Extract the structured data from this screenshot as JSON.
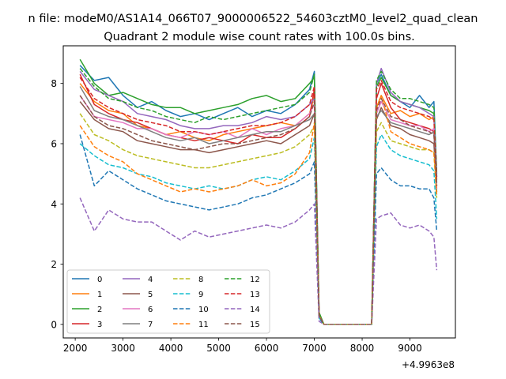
{
  "chart_data": {
    "type": "line",
    "suptitle": "n file: modeM0/AS1A14_066T07_9000006522_54603cztM0_level2_quad_clean",
    "title": "Quadrant 2 module wise count rates with 100.0s bins.",
    "xlabel": "",
    "ylabel": "",
    "x_offset_label": "+4.9963e8",
    "xlim": [
      1750,
      9950
    ],
    "ylim": [
      -0.45,
      9.25
    ],
    "xticks": [
      2000,
      3000,
      4000,
      5000,
      6000,
      7000,
      8000,
      9000
    ],
    "yticks": [
      0,
      2,
      4,
      6,
      8
    ],
    "grid": false,
    "legend_position": "lower-left",
    "legend_columns": 4,
    "x": [
      2100,
      2400,
      2700,
      3000,
      3300,
      3600,
      3900,
      4200,
      4500,
      4800,
      5100,
      5400,
      5700,
      6000,
      6300,
      6600,
      6900,
      7000,
      7100,
      7200,
      7400,
      7600,
      7800,
      8000,
      8200,
      8300,
      8400,
      8600,
      8800,
      9000,
      9200,
      9400,
      9500,
      9560
    ],
    "series": [
      {
        "name": "0",
        "color": "#1f77b4",
        "dash": "solid",
        "values": [
          8.6,
          8.1,
          8.2,
          7.6,
          7.2,
          7.4,
          7.1,
          6.9,
          7.0,
          6.8,
          7.0,
          7.2,
          6.9,
          7.1,
          7.0,
          7.3,
          7.8,
          8.4,
          0.3,
          0,
          0,
          0,
          0,
          0,
          0,
          8.0,
          8.3,
          7.6,
          7.4,
          7.2,
          7.6,
          7.2,
          7.4,
          5.0
        ]
      },
      {
        "name": "1",
        "color": "#ff7f0e",
        "dash": "solid",
        "values": [
          8.0,
          7.4,
          7.1,
          7.0,
          6.6,
          6.5,
          6.3,
          6.4,
          6.2,
          6.1,
          6.3,
          6.4,
          6.5,
          6.6,
          6.7,
          6.6,
          7.0,
          7.6,
          0.3,
          0,
          0,
          0,
          0,
          0,
          0,
          7.2,
          7.6,
          7.0,
          7.1,
          6.9,
          7.0,
          6.8,
          6.9,
          4.8
        ]
      },
      {
        "name": "2",
        "color": "#2ca02c",
        "dash": "solid",
        "values": [
          8.8,
          8.0,
          7.6,
          7.7,
          7.5,
          7.3,
          7.2,
          7.2,
          7.0,
          7.1,
          7.2,
          7.3,
          7.5,
          7.6,
          7.4,
          7.5,
          8.0,
          8.2,
          0.4,
          0,
          0,
          0,
          0,
          0,
          0,
          7.9,
          8.2,
          7.6,
          7.4,
          7.3,
          7.2,
          7.1,
          7.0,
          4.9
        ]
      },
      {
        "name": "3",
        "color": "#d62728",
        "dash": "solid",
        "values": [
          8.3,
          7.3,
          7.0,
          6.8,
          6.7,
          6.5,
          6.3,
          6.2,
          6.1,
          6.2,
          6.1,
          6.0,
          6.3,
          6.2,
          6.2,
          6.5,
          6.9,
          7.8,
          0.3,
          0,
          0,
          0,
          0,
          0,
          0,
          7.5,
          8.0,
          7.2,
          6.8,
          6.7,
          6.6,
          6.5,
          6.4,
          4.6
        ]
      },
      {
        "name": "4",
        "color": "#9467bd",
        "dash": "solid",
        "values": [
          8.4,
          7.8,
          7.6,
          7.4,
          7.0,
          6.9,
          6.8,
          6.6,
          6.5,
          6.5,
          6.6,
          6.6,
          6.7,
          6.9,
          6.8,
          6.9,
          7.3,
          7.5,
          0.3,
          0,
          0,
          0,
          0,
          0,
          0,
          8.0,
          8.5,
          7.7,
          7.4,
          7.3,
          7.2,
          7.0,
          6.9,
          4.9
        ]
      },
      {
        "name": "5",
        "color": "#8c564b",
        "dash": "solid",
        "values": [
          7.4,
          6.8,
          6.5,
          6.4,
          6.1,
          6.0,
          5.9,
          5.8,
          5.8,
          5.7,
          5.8,
          5.9,
          6.0,
          6.1,
          6.0,
          6.3,
          6.6,
          7.0,
          0.3,
          0,
          0,
          0,
          0,
          0,
          0,
          6.8,
          7.2,
          6.6,
          6.5,
          6.3,
          6.2,
          6.1,
          6.0,
          4.4
        ]
      },
      {
        "name": "6",
        "color": "#e377c2",
        "dash": "solid",
        "values": [
          7.6,
          6.9,
          6.8,
          6.7,
          6.5,
          6.5,
          6.3,
          6.2,
          6.4,
          6.3,
          6.4,
          6.2,
          6.5,
          6.3,
          6.5,
          6.6,
          7.0,
          7.3,
          0.3,
          0,
          0,
          0,
          0,
          0,
          0,
          7.0,
          7.4,
          6.8,
          6.7,
          6.6,
          6.6,
          6.4,
          6.5,
          4.5
        ]
      },
      {
        "name": "7",
        "color": "#7f7f7f",
        "dash": "solid",
        "values": [
          7.9,
          7.1,
          6.9,
          6.8,
          6.6,
          6.4,
          6.2,
          6.1,
          6.2,
          6.0,
          6.1,
          6.2,
          6.3,
          6.4,
          6.4,
          6.6,
          6.8,
          7.0,
          0.3,
          0,
          0,
          0,
          0,
          0,
          0,
          6.9,
          7.1,
          6.7,
          6.6,
          6.5,
          6.4,
          6.3,
          6.4,
          4.7
        ]
      },
      {
        "name": "8",
        "color": "#bcbd22",
        "dash": "dashed",
        "values": [
          7.0,
          6.3,
          6.1,
          5.8,
          5.6,
          5.5,
          5.4,
          5.3,
          5.2,
          5.2,
          5.3,
          5.4,
          5.5,
          5.6,
          5.7,
          5.9,
          6.3,
          6.6,
          0.3,
          0,
          0,
          0,
          0,
          0,
          0,
          6.4,
          6.7,
          6.1,
          6.0,
          5.9,
          5.8,
          5.8,
          5.7,
          4.2
        ]
      },
      {
        "name": "9",
        "color": "#17becf",
        "dash": "dashed",
        "values": [
          6.0,
          5.6,
          5.3,
          5.2,
          5.0,
          4.9,
          4.7,
          4.6,
          4.5,
          4.6,
          4.5,
          4.6,
          4.8,
          4.9,
          4.8,
          5.1,
          5.5,
          6.2,
          0.2,
          0,
          0,
          0,
          0,
          0,
          0,
          5.9,
          6.3,
          5.8,
          5.6,
          5.5,
          5.4,
          5.3,
          5.1,
          3.5
        ]
      },
      {
        "name": "10",
        "color": "#1f77b4",
        "dash": "dashed",
        "values": [
          6.3,
          4.6,
          5.1,
          4.8,
          4.5,
          4.3,
          4.1,
          4.0,
          3.9,
          3.8,
          3.9,
          4.0,
          4.2,
          4.3,
          4.5,
          4.7,
          5.0,
          5.4,
          0.2,
          0,
          0,
          0,
          0,
          0,
          0,
          5.0,
          5.2,
          4.8,
          4.6,
          4.6,
          4.5,
          4.5,
          4.2,
          3.1
        ]
      },
      {
        "name": "11",
        "color": "#ff7f0e",
        "dash": "dashed",
        "values": [
          6.6,
          5.9,
          5.6,
          5.4,
          5.0,
          4.8,
          4.6,
          4.4,
          4.5,
          4.4,
          4.5,
          4.6,
          4.8,
          4.6,
          4.7,
          5.0,
          5.7,
          6.7,
          0.3,
          0,
          0,
          0,
          0,
          0,
          0,
          7.2,
          7.6,
          6.4,
          6.2,
          6.0,
          5.9,
          5.8,
          5.7,
          4.3
        ]
      },
      {
        "name": "12",
        "color": "#2ca02c",
        "dash": "dashed",
        "values": [
          8.5,
          7.9,
          7.5,
          7.4,
          7.2,
          7.1,
          6.9,
          6.8,
          6.7,
          6.9,
          6.8,
          6.9,
          7.0,
          7.1,
          7.2,
          7.3,
          7.7,
          8.3,
          0.3,
          0,
          0,
          0,
          0,
          0,
          0,
          8.1,
          8.4,
          7.8,
          7.5,
          7.5,
          7.4,
          7.3,
          7.2,
          5.0
        ]
      },
      {
        "name": "13",
        "color": "#d62728",
        "dash": "dashed",
        "values": [
          8.2,
          7.5,
          7.2,
          7.0,
          6.8,
          6.7,
          6.6,
          6.4,
          6.4,
          6.3,
          6.4,
          6.5,
          6.6,
          6.6,
          6.7,
          6.9,
          7.3,
          7.9,
          0.3,
          0,
          0,
          0,
          0,
          0,
          0,
          7.8,
          8.1,
          7.4,
          7.2,
          7.1,
          7.0,
          6.9,
          6.8,
          4.8
        ]
      },
      {
        "name": "14",
        "color": "#9467bd",
        "dash": "dashed",
        "values": [
          4.2,
          3.1,
          3.8,
          3.5,
          3.4,
          3.4,
          3.1,
          2.8,
          3.1,
          2.9,
          3.0,
          3.1,
          3.2,
          3.3,
          3.2,
          3.4,
          3.8,
          4.0,
          0.1,
          0,
          0,
          0,
          0,
          0,
          0,
          3.5,
          3.6,
          3.7,
          3.3,
          3.2,
          3.3,
          3.1,
          2.9,
          1.8
        ]
      },
      {
        "name": "15",
        "color": "#8c564b",
        "dash": "dashed",
        "values": [
          7.6,
          6.9,
          6.6,
          6.5,
          6.3,
          6.1,
          6.0,
          5.9,
          5.8,
          5.9,
          6.0,
          6.0,
          6.1,
          6.2,
          6.3,
          6.5,
          6.9,
          7.4,
          0.3,
          0,
          0,
          0,
          0,
          0,
          0,
          7.1,
          7.5,
          6.9,
          6.8,
          6.6,
          6.5,
          6.4,
          6.3,
          4.6
        ]
      }
    ]
  }
}
